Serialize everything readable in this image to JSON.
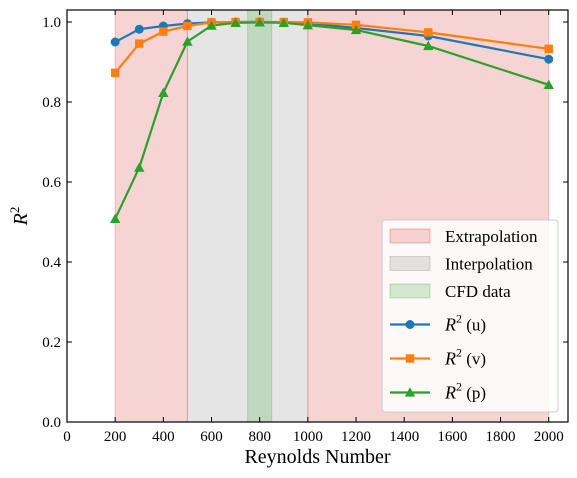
{
  "chart_data": {
    "type": "line",
    "xlabel": "Reynolds Number",
    "ylabel": "R",
    "ylabel_superscript": "2",
    "xlim": [
      0,
      2080
    ],
    "ylim": [
      0,
      1.03
    ],
    "xticks": [
      0,
      200,
      400,
      600,
      800,
      1000,
      1200,
      1400,
      1600,
      1800,
      2000
    ],
    "yticks": [
      0.0,
      0.2,
      0.4,
      0.6,
      0.8,
      1.0
    ],
    "xtick_labels": [
      "0",
      "200",
      "400",
      "600",
      "800",
      "1000",
      "1200",
      "1400",
      "1600",
      "1800",
      "2000"
    ],
    "ytick_labels": [
      "0.0",
      "0.2",
      "0.4",
      "0.6",
      "0.8",
      "1.0"
    ],
    "grid": false,
    "legend_position": "lower-right",
    "regions": [
      {
        "name": "Extrapolation",
        "ranges": [
          [
            200,
            500
          ],
          [
            1000,
            2000
          ]
        ],
        "color": "#d62728",
        "alpha": 0.2
      },
      {
        "name": "Interpolation",
        "ranges": [
          [
            500,
            1000
          ]
        ],
        "color": "#7f7f7f",
        "alpha": 0.2
      },
      {
        "name": "CFD data",
        "ranges": [
          [
            750,
            850
          ]
        ],
        "color": "#2ca02c",
        "alpha": 0.2
      }
    ],
    "series": [
      {
        "name": "R",
        "name_sup": "2",
        "name_suffix": " (u)",
        "marker": "circle",
        "color": "#1f77b4",
        "x": [
          200,
          300,
          400,
          500,
          600,
          700,
          800,
          900,
          1000,
          1200,
          1500,
          2000
        ],
        "y": [
          0.95,
          0.982,
          0.99,
          0.996,
          0.999,
          1.0,
          1.0,
          0.999,
          0.997,
          0.985,
          0.965,
          0.907
        ]
      },
      {
        "name": "R",
        "name_sup": "2",
        "name_suffix": " (v)",
        "marker": "square",
        "color": "#ff7f0e",
        "x": [
          200,
          300,
          400,
          500,
          600,
          700,
          800,
          900,
          1000,
          1200,
          1500,
          2000
        ],
        "y": [
          0.873,
          0.946,
          0.976,
          0.99,
          0.999,
          1.0,
          1.0,
          1.0,
          0.999,
          0.993,
          0.974,
          0.933
        ]
      },
      {
        "name": "R",
        "name_sup": "2",
        "name_suffix": " (p)",
        "marker": "triangle",
        "color": "#2ca02c",
        "x": [
          200,
          300,
          400,
          500,
          600,
          700,
          800,
          900,
          1000,
          1200,
          1500,
          2000
        ],
        "y": [
          0.508,
          0.636,
          0.823,
          0.951,
          0.991,
          0.998,
          0.999,
          0.998,
          0.992,
          0.98,
          0.94,
          0.843
        ]
      }
    ]
  }
}
